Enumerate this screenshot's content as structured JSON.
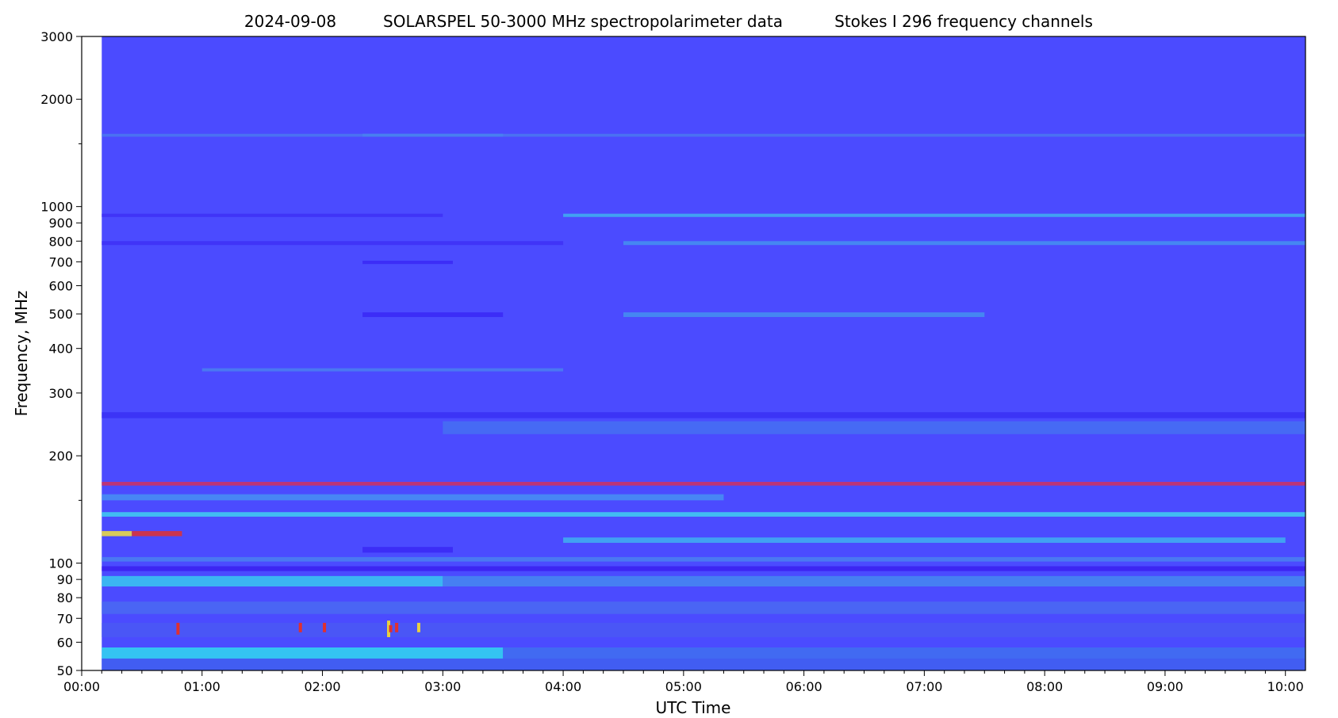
{
  "chart_data": {
    "type": "heatmap",
    "title_parts": [
      "2024-09-08",
      "SOLARSPEL   50-3000 MHz spectropolarimeter data",
      "Stokes I   296 frequency channels"
    ],
    "xlabel": "UTC Time",
    "ylabel": "Frequency, MHz",
    "y_scale": "log",
    "ylim": [
      50,
      3000
    ],
    "y_ticks": [
      {
        "value": 50,
        "label": "50"
      },
      {
        "value": 60,
        "label": "60"
      },
      {
        "value": 70,
        "label": "70"
      },
      {
        "value": 80,
        "label": "80"
      },
      {
        "value": 90,
        "label": "90"
      },
      {
        "value": 100,
        "label": "100"
      },
      {
        "value": 200,
        "label": "200"
      },
      {
        "value": 300,
        "label": "300"
      },
      {
        "value": 400,
        "label": "400"
      },
      {
        "value": 500,
        "label": "500"
      },
      {
        "value": 600,
        "label": "600"
      },
      {
        "value": 700,
        "label": "700"
      },
      {
        "value": 800,
        "label": "800"
      },
      {
        "value": 900,
        "label": "900"
      },
      {
        "value": 1000,
        "label": "1000"
      },
      {
        "value": 2000,
        "label": "2000"
      },
      {
        "value": 3000,
        "label": "3000"
      }
    ],
    "y_minor_ticks": [
      150,
      1500
    ],
    "xlim": [
      "00:00",
      "10:10"
    ],
    "data_start": "00:10",
    "x_ticks": [
      "00:00",
      "01:00",
      "02:00",
      "03:00",
      "04:00",
      "05:00",
      "06:00",
      "07:00",
      "08:00",
      "09:00",
      "10:00"
    ],
    "background_color": "#4b4bff",
    "bands": [
      {
        "f_low": 50,
        "f_high": 54,
        "color": "#4060f0",
        "start": "00:10",
        "end": "10:10"
      },
      {
        "f_low": 54,
        "f_high": 58,
        "color": "#30d8f0",
        "start": "00:10",
        "end": "03:30"
      },
      {
        "f_low": 54,
        "f_high": 58,
        "color": "#4070f0",
        "start": "03:30",
        "end": "10:10"
      },
      {
        "f_low": 62,
        "f_high": 68,
        "color": "#4a58f4",
        "start": "00:10",
        "end": "10:10"
      },
      {
        "f_low": 72,
        "f_high": 78,
        "color": "#4a6af2",
        "start": "00:10",
        "end": "10:10"
      },
      {
        "f_low": 86,
        "f_high": 92,
        "color": "#38c8f0",
        "start": "00:10",
        "end": "03:00"
      },
      {
        "f_low": 86,
        "f_high": 92,
        "color": "#4588f0",
        "start": "03:00",
        "end": "10:10"
      },
      {
        "f_low": 95,
        "f_high": 98,
        "color": "#3a20f0",
        "start": "00:10",
        "end": "10:10"
      },
      {
        "f_low": 101,
        "f_high": 104,
        "color": "#4a80f0",
        "start": "00:10",
        "end": "10:10"
      },
      {
        "f_low": 107,
        "f_high": 111,
        "color": "#3a28f4",
        "start": "02:20",
        "end": "03:05"
      },
      {
        "f_low": 114,
        "f_high": 118,
        "color": "#40b0f0",
        "start": "04:00",
        "end": "10:00"
      },
      {
        "f_low": 119,
        "f_high": 123,
        "color": "#f0e040",
        "start": "00:10",
        "end": "00:25"
      },
      {
        "f_low": 119,
        "f_high": 123,
        "color": "#e03030",
        "start": "00:25",
        "end": "00:50"
      },
      {
        "f_low": 135,
        "f_high": 139,
        "color": "#40d0f0",
        "start": "00:10",
        "end": "10:10"
      },
      {
        "f_low": 150,
        "f_high": 156,
        "color": "#4690f2",
        "start": "00:10",
        "end": "05:20"
      },
      {
        "f_low": 165,
        "f_high": 169,
        "color": "#d03060",
        "start": "00:10",
        "end": "10:10"
      },
      {
        "f_low": 230,
        "f_high": 250,
        "color": "#4570f2",
        "start": "03:00",
        "end": "10:10"
      },
      {
        "f_low": 255,
        "f_high": 265,
        "color": "#3a30f4",
        "start": "00:10",
        "end": "10:10"
      },
      {
        "f_low": 345,
        "f_high": 352,
        "color": "#4a80f0",
        "start": "01:00",
        "end": "04:00"
      },
      {
        "f_low": 490,
        "f_high": 505,
        "color": "#3a28f6",
        "start": "02:20",
        "end": "03:30"
      },
      {
        "f_low": 490,
        "f_high": 505,
        "color": "#4490f0",
        "start": "04:30",
        "end": "07:30"
      },
      {
        "f_low": 690,
        "f_high": 705,
        "color": "#3a28f6",
        "start": "02:20",
        "end": "03:05"
      },
      {
        "f_low": 780,
        "f_high": 800,
        "color": "#3e30f6",
        "start": "00:10",
        "end": "04:00"
      },
      {
        "f_low": 780,
        "f_high": 800,
        "color": "#4490f0",
        "start": "04:30",
        "end": "10:10"
      },
      {
        "f_low": 935,
        "f_high": 955,
        "color": "#3e30f6",
        "start": "00:10",
        "end": "03:00"
      },
      {
        "f_low": 935,
        "f_high": 955,
        "color": "#40b0f0",
        "start": "04:00",
        "end": "10:10"
      },
      {
        "f_low": 1570,
        "f_high": 1600,
        "color": "#40b8f0",
        "start": "02:20",
        "end": "03:30"
      },
      {
        "f_low": 1570,
        "f_high": 1600,
        "color": "#4a78f0",
        "start": "00:10",
        "end": "10:10"
      }
    ],
    "hotspots": [
      {
        "time": "00:48",
        "f_low": 63,
        "f_high": 68,
        "color": "#e03030"
      },
      {
        "time": "01:49",
        "f_low": 64,
        "f_high": 68,
        "color": "#e03030"
      },
      {
        "time": "02:01",
        "f_low": 64,
        "f_high": 68,
        "color": "#e03030"
      },
      {
        "time": "02:33",
        "f_low": 62,
        "f_high": 69,
        "color": "#e8d040"
      },
      {
        "time": "02:34",
        "f_low": 64,
        "f_high": 67,
        "color": "#e03030"
      },
      {
        "time": "02:37",
        "f_low": 64,
        "f_high": 68,
        "color": "#e03030"
      },
      {
        "time": "02:48",
        "f_low": 64,
        "f_high": 68,
        "color": "#e8d040"
      }
    ]
  }
}
